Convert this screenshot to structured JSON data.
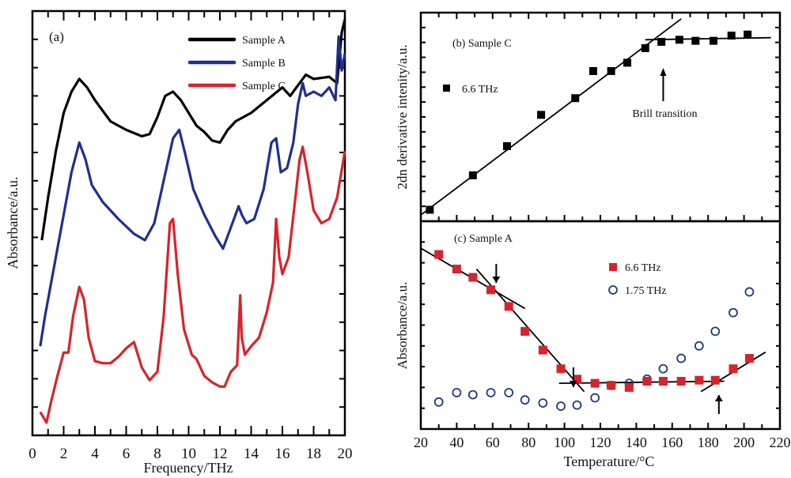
{
  "chart_data": [
    {
      "id": "a",
      "type": "line",
      "panel_label": "(a)",
      "xlabel": "Frequency/THz",
      "ylabel": "Absorbance/a.u.",
      "xlim": [
        0,
        20
      ],
      "ylim": [
        0,
        10
      ],
      "xticks": [
        "0",
        "2",
        "4",
        "6",
        "8",
        "10",
        "12",
        "14",
        "16",
        "18",
        "20"
      ],
      "xtick_values": [
        0,
        2,
        4,
        6,
        8,
        10,
        12,
        14,
        16,
        18,
        20
      ],
      "yticks_labeled": false,
      "legend": "top-right",
      "series": [
        {
          "name": "Sample A",
          "color": "#000000",
          "x": [
            0.6,
            1.0,
            1.5,
            2.0,
            2.5,
            3.0,
            3.5,
            4.0,
            5.0,
            6.0,
            7.0,
            7.5,
            8.0,
            8.5,
            9.0,
            9.5,
            10.0,
            10.5,
            11.0,
            11.5,
            12.0,
            12.5,
            13.0,
            13.5,
            14.0,
            15.0,
            16.0,
            16.5,
            17.0,
            17.5,
            18.0,
            19.0,
            19.5,
            19.8,
            20.0
          ],
          "y": [
            4.6,
            5.6,
            6.7,
            7.6,
            8.1,
            8.4,
            8.2,
            7.9,
            7.4,
            7.2,
            7.05,
            7.1,
            7.5,
            8.0,
            8.1,
            7.9,
            7.6,
            7.3,
            7.15,
            6.95,
            6.9,
            7.2,
            7.4,
            7.5,
            7.6,
            7.9,
            8.2,
            8.0,
            8.25,
            8.5,
            8.4,
            8.45,
            8.3,
            9.5,
            9.8
          ]
        },
        {
          "name": "Sample B",
          "color": "#1f2f8f",
          "x": [
            0.5,
            0.8,
            1.2,
            1.6,
            2.0,
            2.5,
            3.0,
            3.4,
            3.8,
            4.5,
            5.5,
            6.5,
            7.2,
            7.8,
            8.4,
            9.0,
            9.4,
            9.8,
            10.3,
            11.0,
            11.7,
            12.2,
            12.7,
            13.2,
            13.4,
            13.7,
            14.2,
            14.8,
            15.3,
            15.6,
            15.9,
            16.3,
            16.7,
            17.0,
            17.3,
            17.5,
            18.0,
            18.5,
            19.0,
            19.4,
            19.6,
            19.8,
            20.0
          ],
          "y": [
            2.1,
            2.8,
            3.6,
            4.4,
            5.2,
            6.2,
            6.9,
            6.5,
            5.9,
            5.5,
            5.1,
            4.75,
            4.6,
            5.0,
            6.0,
            7.0,
            7.2,
            6.6,
            5.8,
            5.2,
            4.7,
            4.4,
            4.9,
            5.4,
            5.2,
            5.0,
            5.1,
            5.8,
            6.9,
            7.0,
            6.2,
            6.3,
            6.9,
            7.8,
            8.3,
            8.0,
            8.1,
            8.0,
            8.2,
            7.9,
            9.4,
            8.6,
            9.0
          ]
        },
        {
          "name": "Sample C",
          "color": "#d8232a",
          "x": [
            0.5,
            0.9,
            1.2,
            1.6,
            2.0,
            2.3,
            2.6,
            3.0,
            3.3,
            3.6,
            4.0,
            4.5,
            5.0,
            5.5,
            6.0,
            6.5,
            7.0,
            7.5,
            8.0,
            8.4,
            8.8,
            9.0,
            9.3,
            9.7,
            10.2,
            10.5,
            11.0,
            11.5,
            12.0,
            12.3,
            12.7,
            13.1,
            13.3,
            13.4,
            13.6,
            14.0,
            14.5,
            15.0,
            15.4,
            15.6,
            15.8,
            16.0,
            16.4,
            16.8,
            17.1,
            17.3,
            17.6,
            18.0,
            18.5,
            19.0,
            19.5,
            20.0
          ],
          "y": [
            0.55,
            0.3,
            0.8,
            1.4,
            1.95,
            1.95,
            2.8,
            3.5,
            3.2,
            2.3,
            1.75,
            1.7,
            1.7,
            1.85,
            2.05,
            2.2,
            1.6,
            1.3,
            1.5,
            2.8,
            5.0,
            5.1,
            3.8,
            2.5,
            1.9,
            1.8,
            1.4,
            1.25,
            1.15,
            1.15,
            1.5,
            1.65,
            3.3,
            2.3,
            1.9,
            2.1,
            2.3,
            2.9,
            3.6,
            5.1,
            4.2,
            3.8,
            4.2,
            5.5,
            6.5,
            6.8,
            6.2,
            5.3,
            5.0,
            5.1,
            5.6,
            6.7
          ]
        }
      ],
      "annotations": []
    },
    {
      "id": "b",
      "type": "scatter",
      "panel_label": "(b) Sample C",
      "xlabel": "",
      "ylabel": "2dn derivative intenity/a.u.",
      "xlim": [
        20,
        220
      ],
      "ylim": [
        0,
        10
      ],
      "legend": "left",
      "series": [
        {
          "name": "6.6 THz",
          "color": "#000000",
          "marker": "square",
          "x": [
            25,
            49,
            68,
            87,
            106,
            116,
            126,
            135,
            145,
            154,
            164,
            173,
            183,
            193,
            202
          ],
          "y": [
            0.55,
            2.2,
            3.6,
            5.1,
            5.9,
            7.2,
            7.2,
            7.6,
            8.3,
            8.6,
            8.7,
            8.65,
            8.65,
            8.9,
            8.95
          ]
        }
      ],
      "fit_lines": [
        {
          "x": [
            20,
            165
          ],
          "y": [
            0.3,
            9.7
          ]
        },
        {
          "x": [
            145,
            215
          ],
          "y": [
            8.7,
            8.8
          ]
        }
      ],
      "annotations": [
        {
          "text": "Brill transition",
          "x": 155,
          "arrow_to_y": 7.8
        }
      ]
    },
    {
      "id": "c",
      "type": "scatter",
      "panel_label": "(c) Sample A",
      "xlabel": "Temperature/°C",
      "ylabel": "Absorbance/a.u.",
      "xlim": [
        20,
        220
      ],
      "ylim": [
        0,
        10
      ],
      "xticks": [
        "20",
        "40",
        "60",
        "80",
        "100",
        "120",
        "140",
        "160",
        "180",
        "200",
        "220"
      ],
      "xtick_values": [
        20,
        40,
        60,
        80,
        100,
        120,
        140,
        160,
        180,
        200,
        220
      ],
      "legend": "top-right",
      "series": [
        {
          "name": "6.6 THz",
          "color": "#d8232a",
          "marker": "square",
          "x": [
            30,
            40,
            49,
            59,
            69,
            78,
            88,
            98,
            107,
            117,
            126,
            136,
            146,
            155,
            165,
            175,
            184,
            194,
            203
          ],
          "y": [
            8.4,
            7.7,
            7.3,
            6.7,
            5.9,
            4.7,
            3.8,
            2.9,
            2.4,
            2.2,
            2.1,
            2.0,
            2.3,
            2.3,
            2.3,
            2.35,
            2.35,
            2.9,
            3.4
          ]
        },
        {
          "name": "1.75 THz",
          "color": "#1f3a7a",
          "marker": "circle-open",
          "x": [
            30,
            40,
            49,
            59,
            69,
            78,
            88,
            98,
            107,
            117,
            126,
            136,
            146,
            155,
            165,
            175,
            184,
            194,
            203
          ],
          "y": [
            1.3,
            1.75,
            1.65,
            1.75,
            1.75,
            1.4,
            1.25,
            1.1,
            1.15,
            1.5,
            2.1,
            2.2,
            2.4,
            2.9,
            3.4,
            4.0,
            4.7,
            5.6,
            6.6
          ]
        }
      ],
      "fit_lines": [
        {
          "x": [
            20,
            78
          ],
          "y": [
            8.7,
            5.8
          ]
        },
        {
          "x": [
            51,
            111
          ],
          "y": [
            7.7,
            1.8
          ]
        },
        {
          "x": [
            97,
            189
          ],
          "y": [
            2.2,
            2.3
          ]
        },
        {
          "x": [
            176,
            212
          ],
          "y": [
            1.8,
            3.7
          ]
        }
      ],
      "annotations": [
        {
          "text": "↓",
          "x": 62,
          "direction": "down"
        },
        {
          "text": "↓",
          "x": 105,
          "direction": "down"
        },
        {
          "text": "↑",
          "x": 186,
          "direction": "up"
        }
      ]
    }
  ]
}
